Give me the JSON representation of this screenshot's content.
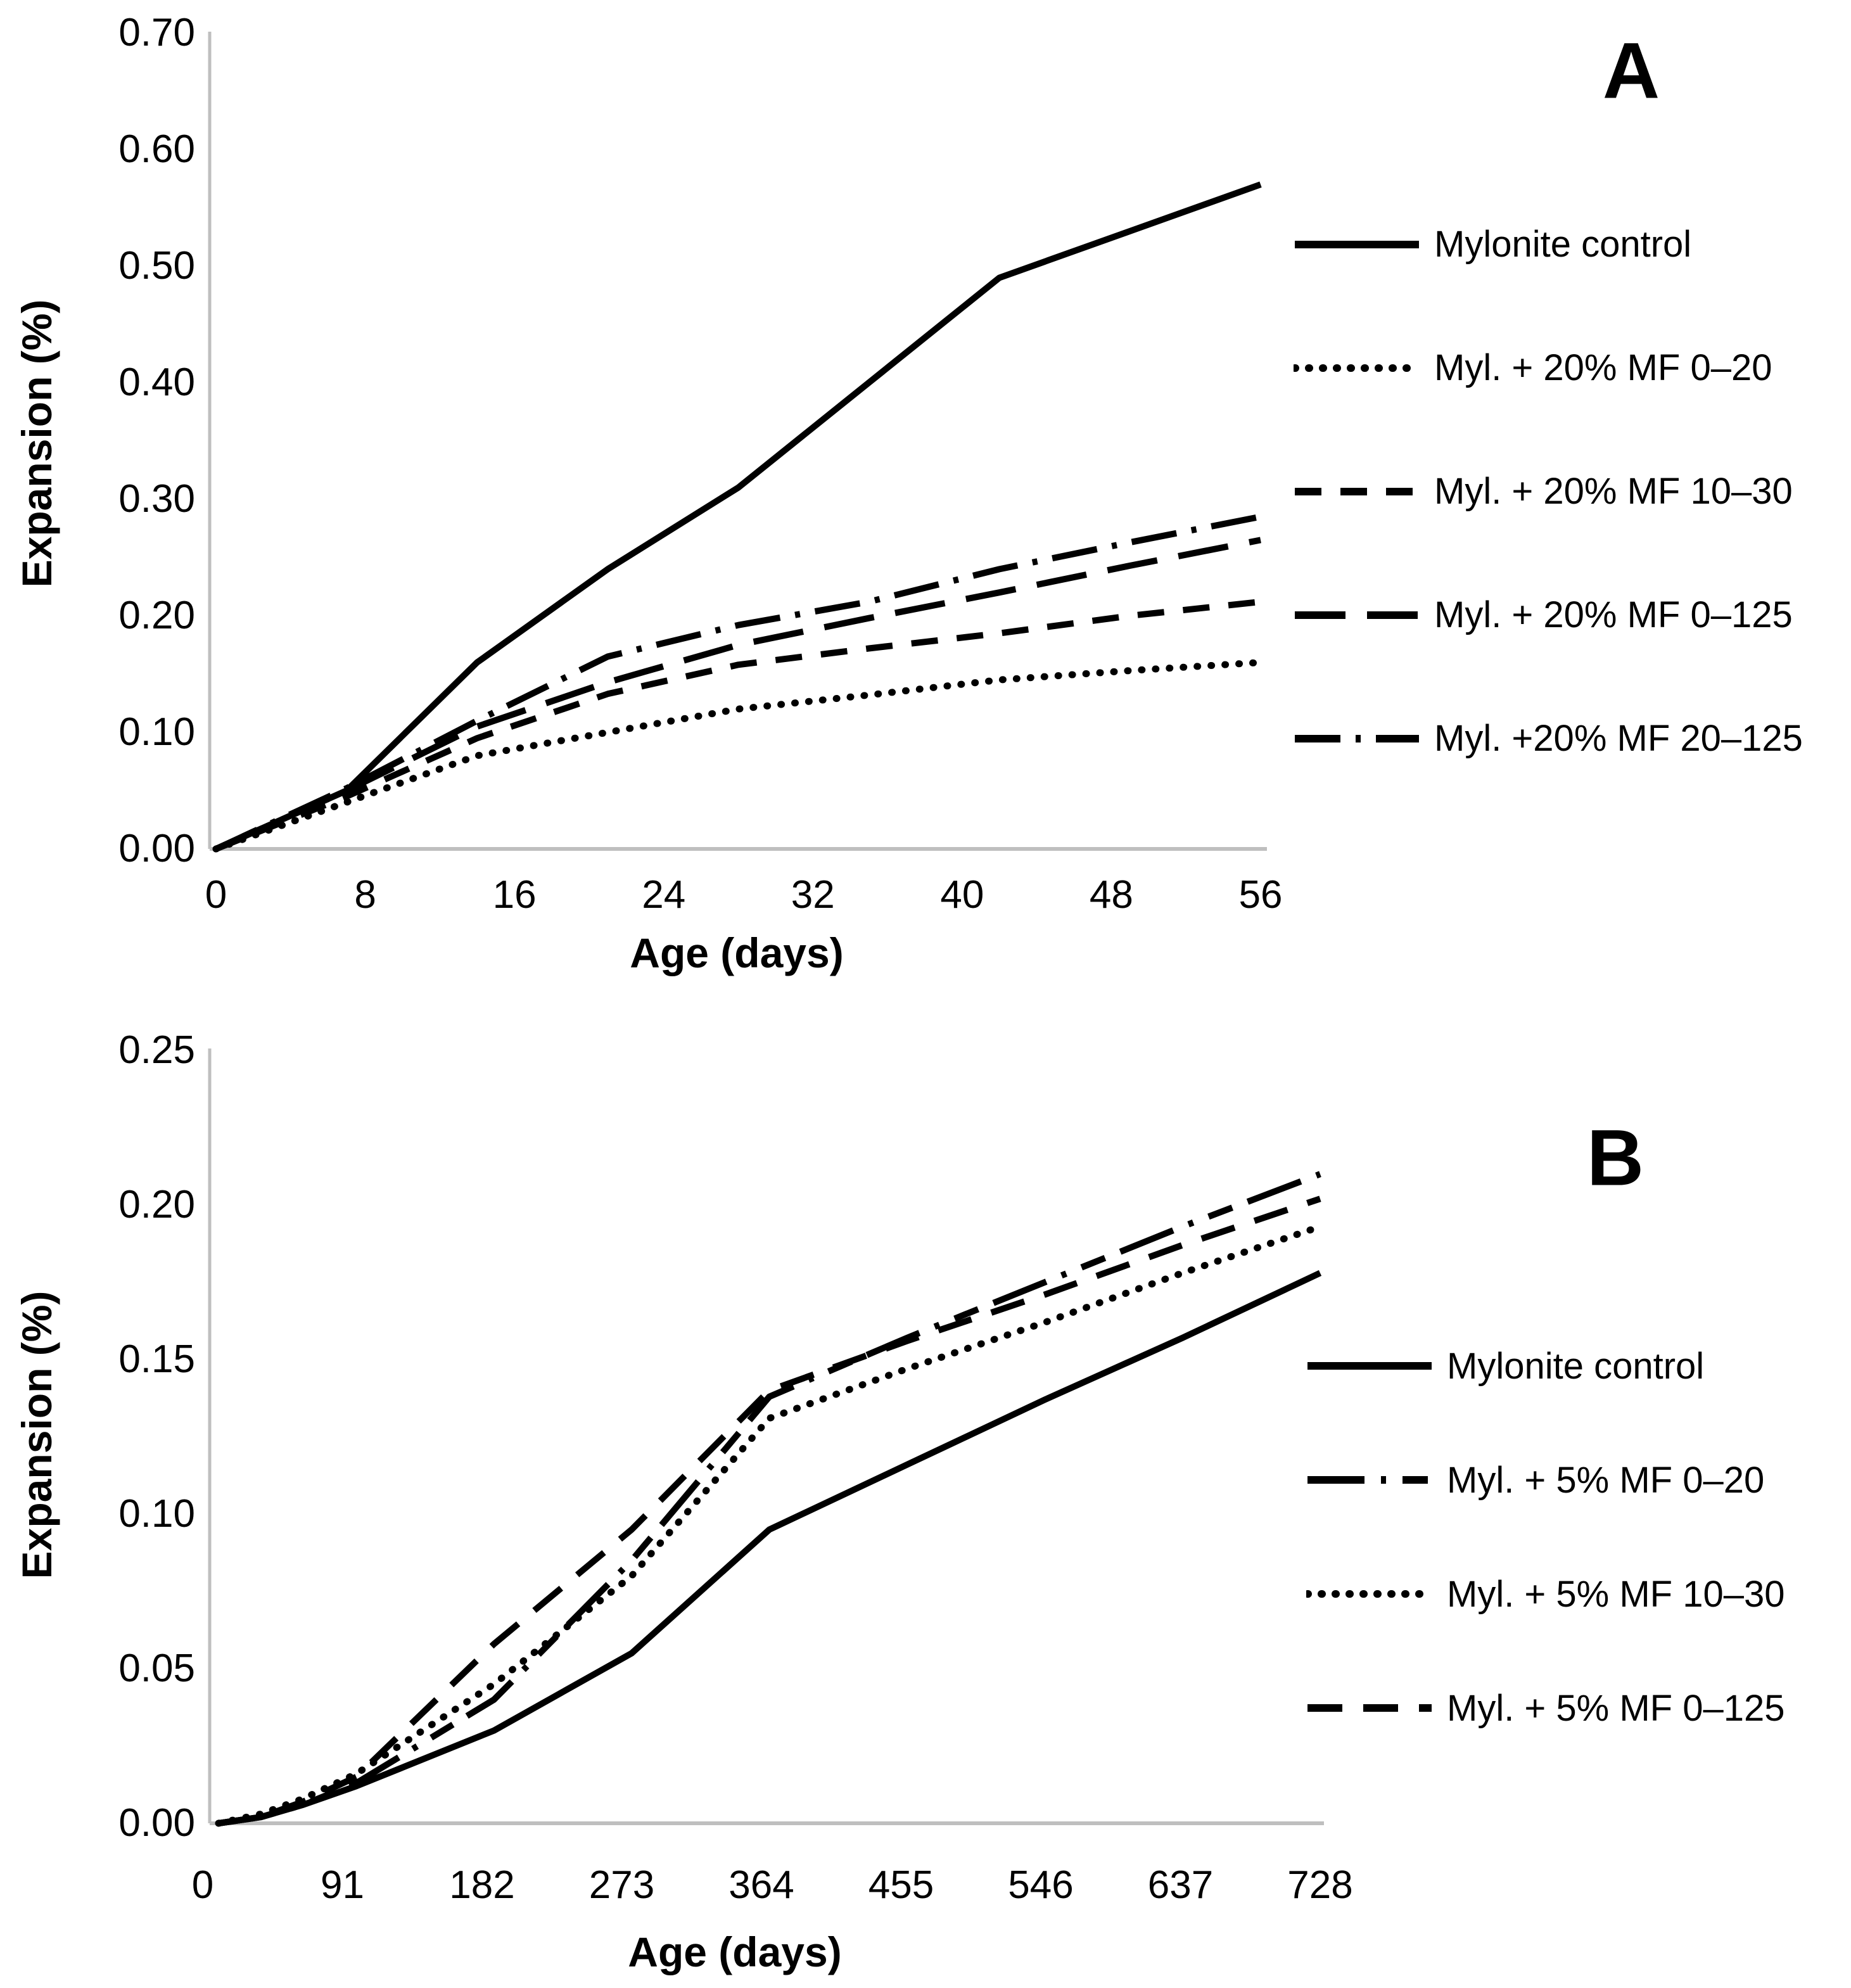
{
  "page": {
    "background": "#ffffff"
  },
  "colors": {
    "line": "#000000",
    "axis_line": "#bfbfbf",
    "text": "#000000"
  },
  "chart_data": [
    {
      "id": "panel-a",
      "type": "line",
      "panel_label": "A",
      "xlabel": "Age (days)",
      "ylabel": "Expansion (%)",
      "xlim": [
        0,
        56
      ],
      "ylim": [
        0.0,
        0.7
      ],
      "xticks": [
        0,
        8,
        16,
        24,
        32,
        40,
        48,
        56
      ],
      "ytick_labels": [
        "0.00",
        "0.10",
        "0.20",
        "0.30",
        "0.40",
        "0.50",
        "0.60",
        "0.70"
      ],
      "grid": false,
      "legend_position": "right",
      "x_days": [
        0,
        7,
        14,
        21,
        28,
        35,
        42,
        49,
        56
      ],
      "series": [
        {
          "name": "Mylonite control",
          "style": "solid",
          "values": [
            0,
            0.05,
            0.16,
            0.24,
            0.31,
            0.4,
            0.49,
            0.53,
            0.57
          ]
        },
        {
          "name": "Myl. + 20% MF 0–20",
          "style": "dotted",
          "values": [
            0,
            0.04,
            0.08,
            0.1,
            0.12,
            0.132,
            0.145,
            0.153,
            0.16
          ]
        },
        {
          "name": "Myl. + 20% MF 10–30",
          "style": "short-dash",
          "values": [
            0,
            0.045,
            0.095,
            0.133,
            0.158,
            0.172,
            0.185,
            0.2,
            0.212
          ]
        },
        {
          "name": "Myl. + 20% MF 0–125",
          "style": "long-dash",
          "values": [
            0,
            0.05,
            0.105,
            0.143,
            0.175,
            0.198,
            0.22,
            0.243,
            0.265
          ]
        },
        {
          "name": "Myl. +20% MF 20–125",
          "style": "dash-dot",
          "values": [
            0,
            0.052,
            0.11,
            0.165,
            0.192,
            0.212,
            0.24,
            0.263,
            0.285
          ]
        }
      ]
    },
    {
      "id": "panel-b",
      "type": "line",
      "panel_label": "B",
      "xlabel": "Age (days)",
      "ylabel": "Expansion (%)",
      "xlim": [
        0,
        728
      ],
      "ylim": [
        0.0,
        0.25
      ],
      "xticks": [
        0,
        91,
        182,
        273,
        364,
        455,
        546,
        637,
        728
      ],
      "ytick_labels": [
        "0.00",
        "0.05",
        "0.10",
        "0.15",
        "0.20",
        "0.25"
      ],
      "grid": false,
      "legend_position": "right",
      "x_days": [
        0,
        28,
        56,
        91,
        182,
        273,
        364,
        455,
        546,
        637,
        728
      ],
      "series": [
        {
          "name": "Mylonite control",
          "style": "solid",
          "values": [
            0,
            0.002,
            0.006,
            0.012,
            0.03,
            0.055,
            0.095,
            0.116,
            0.137,
            0.157,
            0.178
          ]
        },
        {
          "name": "Myl. + 5% MF 0–20",
          "style": "dash-dot-dash",
          "values": [
            0,
            0.002,
            0.006,
            0.013,
            0.04,
            0.085,
            0.138,
            0.157,
            0.175,
            0.193,
            0.21
          ]
        },
        {
          "name": "Myl. + 5% MF 10–30",
          "style": "dotted",
          "values": [
            0,
            0.003,
            0.008,
            0.016,
            0.045,
            0.08,
            0.131,
            0.147,
            0.162,
            0.178,
            0.193
          ]
        },
        {
          "name": "Myl. + 5% MF 0–125",
          "style": "dashed",
          "values": [
            0,
            0.002,
            0.007,
            0.015,
            0.058,
            0.095,
            0.14,
            0.156,
            0.171,
            0.187,
            0.202
          ]
        }
      ]
    }
  ]
}
